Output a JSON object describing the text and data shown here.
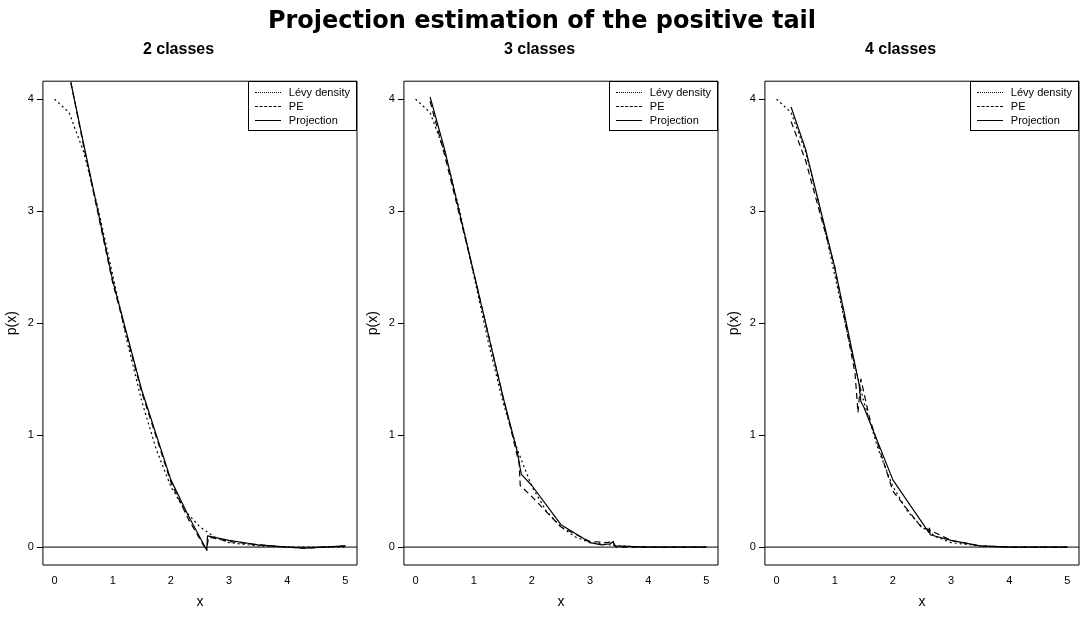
{
  "chart_data": [
    {
      "type": "line",
      "title": "2 classes",
      "annotations": [
        "Projection estimation of the positive tail"
      ],
      "xlabel": "x",
      "ylabel": "p(x)",
      "xlim": [
        -0.2,
        5.2
      ],
      "ylim": [
        -0.16,
        4.16
      ],
      "xticks": [
        0,
        1,
        2,
        3,
        4,
        5
      ],
      "yticks": [
        0,
        1,
        2,
        3,
        4
      ],
      "legend": "top right",
      "grid": false,
      "ref_lines": [
        {
          "axis": "y",
          "value": 0,
          "color": "#000000"
        }
      ],
      "series": [
        {
          "name": "Lévy density",
          "color": "#000000",
          "line_style": "dotted",
          "x": [
            0,
            0.25,
            0.5,
            0.75,
            1,
            1.25,
            1.5,
            1.75,
            2,
            2.25,
            2.5,
            2.75,
            3,
            3.5,
            4,
            4.5,
            5
          ],
          "values": [
            4.0,
            3.88,
            3.53,
            3.02,
            2.43,
            1.83,
            1.3,
            0.87,
            0.54,
            0.32,
            0.18,
            0.09,
            0.04,
            0.01,
            0,
            0,
            0
          ]
        },
        {
          "name": "PE",
          "color": "#000000",
          "line_style": "dashed",
          "x": [
            0.28,
            0.5,
            1,
            1.5,
            2,
            2.3,
            2.58,
            2.62,
            2.65,
            3,
            3.5,
            4,
            4.3,
            5
          ],
          "values": [
            4.15,
            3.58,
            2.36,
            1.38,
            0.58,
            0.25,
            0,
            0,
            0.09,
            0.05,
            0.02,
            0,
            -0.01,
            0.01
          ]
        },
        {
          "name": "Projection",
          "color": "#000000",
          "line_style": "solid",
          "x": [
            0.28,
            0.5,
            1,
            1.5,
            2,
            2.3,
            2.62,
            2.62,
            2.63,
            3,
            3.5,
            4,
            4.3,
            5
          ],
          "values": [
            4.15,
            3.6,
            2.38,
            1.4,
            0.6,
            0.28,
            -0.03,
            0,
            0.1,
            0.06,
            0.02,
            0,
            -0.01,
            0.01
          ]
        }
      ]
    },
    {
      "type": "line",
      "title": "3 classes",
      "xlabel": "x",
      "ylabel": "p(x)",
      "xlim": [
        -0.2,
        5.2
      ],
      "ylim": [
        -0.16,
        4.16
      ],
      "xticks": [
        0,
        1,
        2,
        3,
        4,
        5
      ],
      "yticks": [
        0,
        1,
        2,
        3,
        4
      ],
      "legend": "top right",
      "grid": false,
      "ref_lines": [
        {
          "axis": "y",
          "value": 0,
          "color": "#000000"
        }
      ],
      "series": [
        {
          "name": "Lévy density",
          "color": "#000000",
          "line_style": "dotted",
          "x": [
            0,
            0.25,
            0.5,
            0.75,
            1,
            1.25,
            1.5,
            1.75,
            2,
            2.25,
            2.5,
            2.75,
            3,
            3.5,
            4,
            4.5,
            5
          ],
          "values": [
            4.0,
            3.88,
            3.53,
            3.02,
            2.43,
            1.83,
            1.3,
            0.87,
            0.54,
            0.32,
            0.18,
            0.09,
            0.04,
            0.01,
            0,
            0,
            0
          ]
        },
        {
          "name": "PE",
          "color": "#000000",
          "line_style": "dashed",
          "x": [
            0.25,
            0.5,
            1,
            1.5,
            1.78,
            1.8,
            2,
            2.5,
            3,
            3.3,
            3.38,
            3.45,
            4,
            5
          ],
          "values": [
            3.98,
            3.5,
            2.45,
            1.35,
            0.75,
            0.55,
            0.45,
            0.18,
            0.05,
            0.04,
            0.05,
            0,
            0,
            0
          ]
        },
        {
          "name": "Projection",
          "color": "#000000",
          "line_style": "solid",
          "x": [
            0.25,
            0.5,
            1,
            1.5,
            1.75,
            1.8,
            1.82,
            2,
            2.5,
            3,
            3.2,
            3.35,
            3.4,
            3.42,
            4,
            5
          ],
          "values": [
            4.02,
            3.55,
            2.45,
            1.35,
            0.85,
            0.7,
            0.65,
            0.55,
            0.2,
            0.04,
            0.02,
            0.03,
            0.05,
            0.01,
            0,
            0
          ]
        }
      ]
    },
    {
      "type": "line",
      "title": "4 classes",
      "xlabel": "x",
      "ylabel": "p(x)",
      "xlim": [
        -0.2,
        5.2
      ],
      "ylim": [
        -0.16,
        4.16
      ],
      "xticks": [
        0,
        1,
        2,
        3,
        4,
        5
      ],
      "yticks": [
        0,
        1,
        2,
        3,
        4
      ],
      "legend": "top right",
      "grid": false,
      "ref_lines": [
        {
          "axis": "y",
          "value": 0,
          "color": "#000000"
        }
      ],
      "series": [
        {
          "name": "Lévy density",
          "color": "#000000",
          "line_style": "dotted",
          "x": [
            0,
            0.25,
            0.5,
            0.75,
            1,
            1.25,
            1.5,
            1.75,
            2,
            2.25,
            2.5,
            2.75,
            3,
            3.5,
            4,
            4.5,
            5
          ],
          "values": [
            4.0,
            3.88,
            3.53,
            3.02,
            2.43,
            1.83,
            1.3,
            0.87,
            0.54,
            0.32,
            0.18,
            0.09,
            0.04,
            0.01,
            0,
            0,
            0
          ]
        },
        {
          "name": "PE",
          "color": "#000000",
          "line_style": "dashed",
          "x": [
            0.25,
            0.5,
            1,
            1.35,
            1.4,
            1.45,
            1.6,
            2,
            2.5,
            2.6,
            3,
            3.5,
            4,
            5
          ],
          "values": [
            3.8,
            3.45,
            2.5,
            1.55,
            1.2,
            1.5,
            1.15,
            0.5,
            0.17,
            0.16,
            0.06,
            0.01,
            0,
            0
          ]
        },
        {
          "name": "Projection",
          "color": "#000000",
          "line_style": "solid",
          "x": [
            0.25,
            0.5,
            1,
            1.3,
            1.42,
            1.45,
            1.5,
            2,
            2.5,
            2.62,
            2.63,
            2.64,
            3,
            3.5,
            4,
            5
          ],
          "values": [
            3.93,
            3.55,
            2.5,
            1.75,
            1.45,
            1.3,
            1.25,
            0.6,
            0.22,
            0.13,
            0.17,
            0.11,
            0.06,
            0.01,
            0,
            0
          ]
        }
      ]
    }
  ]
}
